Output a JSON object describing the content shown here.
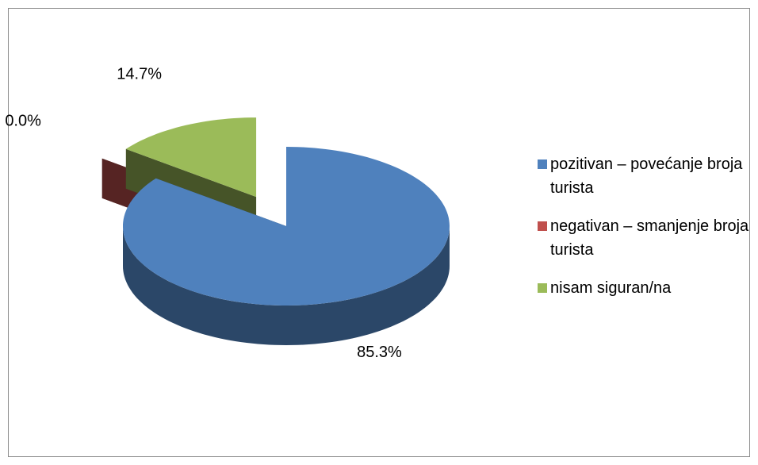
{
  "chart_data": {
    "type": "pie",
    "categories": [
      "pozitivan – povećanje broja turista",
      "negativan – smanjenje broja turista",
      "nisam siguran/na"
    ],
    "values": [
      85.3,
      0.0,
      14.7
    ],
    "value_labels": [
      "85.3%",
      "0.0%",
      "14.7%"
    ],
    "colors": [
      "#4f81bd",
      "#c0504d",
      "#9bbb59"
    ],
    "legend": "right"
  }
}
